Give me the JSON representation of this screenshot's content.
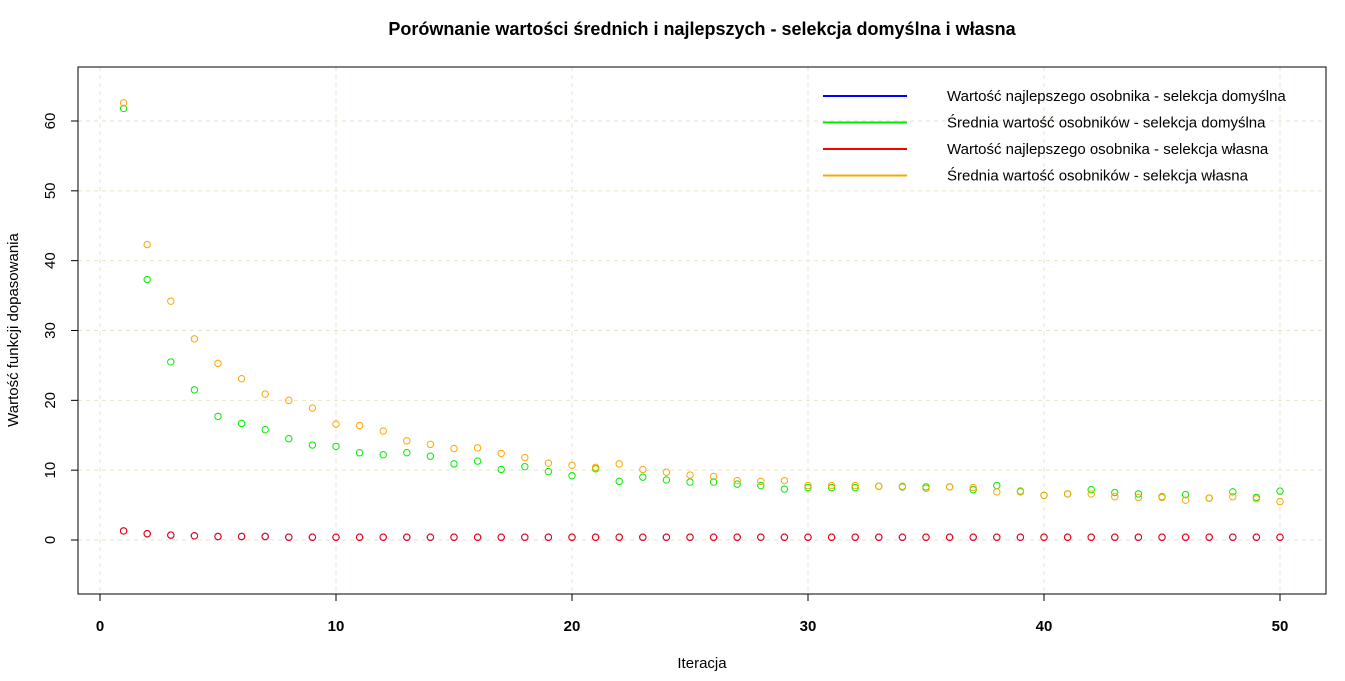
{
  "chart_data": {
    "type": "scatter",
    "title": "Porównanie wartości średnich i najlepszych - selekcja domyślna i własna",
    "xlabel": "Iteracja",
    "ylabel": "Wartość funkcji dopasowania",
    "xlim": [
      -1,
      52
    ],
    "ylim": [
      -8,
      68
    ],
    "xticks": [
      0,
      10,
      20,
      30,
      40,
      50
    ],
    "yticks": [
      0,
      10,
      20,
      30,
      40,
      50,
      60
    ],
    "grid": true,
    "legend_position": "top-right",
    "x": [
      1,
      2,
      3,
      4,
      5,
      6,
      7,
      8,
      9,
      10,
      11,
      12,
      13,
      14,
      15,
      16,
      17,
      18,
      19,
      20,
      21,
      22,
      23,
      24,
      25,
      26,
      27,
      28,
      29,
      30,
      31,
      32,
      33,
      34,
      35,
      36,
      37,
      38,
      39,
      40,
      41,
      42,
      43,
      44,
      45,
      46,
      47,
      48,
      49,
      50
    ],
    "series": [
      {
        "name": "Wartość najlepszego osobnika - selekcja domyślna",
        "color": "#0000ff",
        "values": [
          1.3,
          0.9,
          0.7,
          0.6,
          0.5,
          0.5,
          0.5,
          0.4,
          0.4,
          0.4,
          0.4,
          0.4,
          0.4,
          0.4,
          0.4,
          0.4,
          0.4,
          0.4,
          0.4,
          0.4,
          0.4,
          0.4,
          0.4,
          0.4,
          0.4,
          0.4,
          0.4,
          0.4,
          0.4,
          0.4,
          0.4,
          0.4,
          0.4,
          0.4,
          0.4,
          0.4,
          0.4,
          0.4,
          0.4,
          0.4,
          0.4,
          0.4,
          0.4,
          0.4,
          0.4,
          0.4,
          0.4,
          0.4,
          0.4,
          0.4
        ]
      },
      {
        "name": "Średnia wartość osobników - selekcja domyślna",
        "color": "#00ee00",
        "values": [
          61.8,
          37.3,
          25.5,
          21.5,
          17.7,
          16.7,
          15.8,
          14.5,
          13.6,
          13.4,
          12.5,
          12.2,
          12.5,
          12.0,
          10.9,
          11.3,
          10.1,
          10.5,
          9.8,
          9.2,
          10.2,
          8.4,
          9.0,
          8.6,
          8.3,
          8.3,
          8.0,
          7.8,
          7.3,
          7.5,
          7.5,
          7.5,
          7.7,
          7.6,
          7.6,
          7.6,
          7.2,
          7.8,
          7.0,
          6.4,
          6.6,
          7.2,
          6.8,
          6.6,
          6.2,
          6.5,
          6.0,
          6.9,
          6.1,
          7.0
        ]
      },
      {
        "name": "Wartość najlepszego osobnika - selekcja własna",
        "color": "#ff0000",
        "values": [
          1.3,
          0.9,
          0.7,
          0.6,
          0.5,
          0.5,
          0.5,
          0.4,
          0.4,
          0.4,
          0.4,
          0.4,
          0.4,
          0.4,
          0.4,
          0.4,
          0.4,
          0.4,
          0.4,
          0.4,
          0.4,
          0.4,
          0.4,
          0.4,
          0.4,
          0.4,
          0.4,
          0.4,
          0.4,
          0.4,
          0.4,
          0.4,
          0.4,
          0.4,
          0.4,
          0.4,
          0.4,
          0.4,
          0.4,
          0.4,
          0.4,
          0.4,
          0.4,
          0.4,
          0.4,
          0.4,
          0.4,
          0.4,
          0.4,
          0.4
        ]
      },
      {
        "name": "Średnia wartość osobników - selekcja własna",
        "color": "#ffa500",
        "values": [
          62.6,
          42.3,
          34.2,
          28.8,
          25.3,
          23.1,
          20.9,
          20.0,
          18.9,
          16.6,
          16.4,
          15.6,
          14.2,
          13.7,
          13.1,
          13.2,
          12.4,
          11.8,
          11.0,
          10.7,
          10.4,
          10.9,
          10.1,
          9.7,
          9.3,
          9.1,
          8.5,
          8.4,
          8.5,
          7.8,
          7.8,
          7.8,
          7.7,
          7.7,
          7.4,
          7.6,
          7.5,
          6.9,
          6.9,
          6.4,
          6.6,
          6.6,
          6.2,
          6.1,
          6.1,
          5.7,
          6.0,
          6.2,
          5.9,
          5.5
        ]
      }
    ]
  }
}
